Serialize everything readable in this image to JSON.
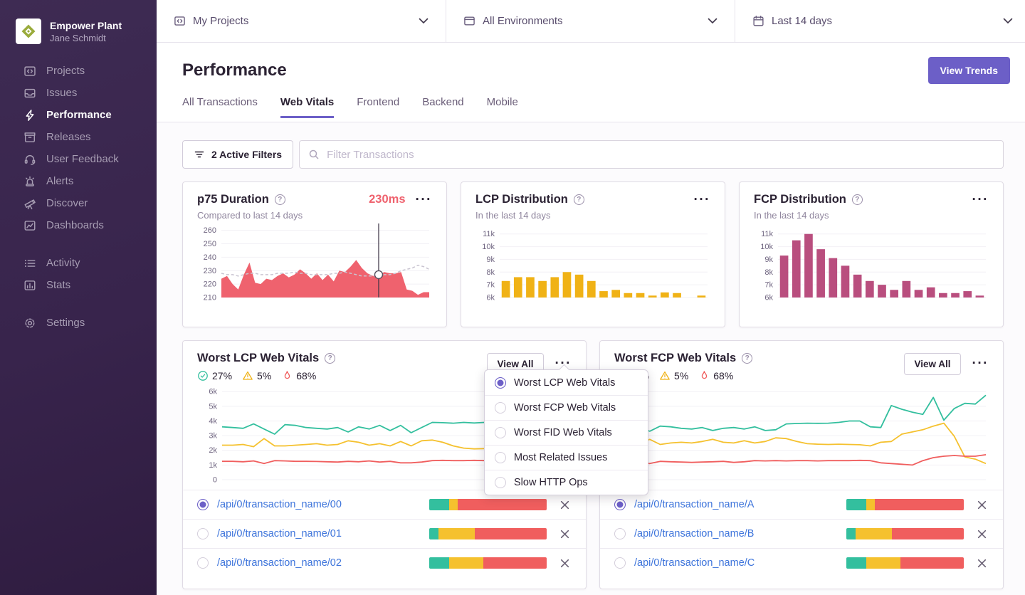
{
  "colors": {
    "accent_purple": "#6C5FC7",
    "sidebar_bg": "#38244C",
    "link_blue": "#3D74DB",
    "red": "#EF626E",
    "bar_yellow": "#F0B216",
    "bar_magenta": "#B94E7E",
    "line_green": "#33BF9E",
    "line_yellow": "#F5C12E",
    "line_red": "#F05E5E",
    "score_segments": [
      "#33BF9E",
      "#F5C12E",
      "#F05E5E"
    ]
  },
  "sidebar": {
    "org": "Empower Plant",
    "user": "Jane Schmidt",
    "items": [
      {
        "icon": "projects-icon",
        "label": "Projects"
      },
      {
        "icon": "issues-icon",
        "label": "Issues"
      },
      {
        "icon": "performance-icon",
        "label": "Performance",
        "active": true
      },
      {
        "icon": "releases-icon",
        "label": "Releases"
      },
      {
        "icon": "user-feedback-icon",
        "label": "User Feedback"
      },
      {
        "icon": "alerts-icon",
        "label": "Alerts"
      },
      {
        "icon": "discover-icon",
        "label": "Discover"
      },
      {
        "icon": "dashboards-icon",
        "label": "Dashboards"
      }
    ],
    "secondary": [
      {
        "icon": "activity-icon",
        "label": "Activity"
      },
      {
        "icon": "stats-icon",
        "label": "Stats"
      }
    ],
    "tertiary": [
      {
        "icon": "settings-icon",
        "label": "Settings"
      }
    ]
  },
  "topbar": {
    "project_selector": "My Projects",
    "env_selector": "All Environments",
    "date_selector": "Last 14 days"
  },
  "header": {
    "title": "Performance",
    "view_trends": "View Trends",
    "tabs": [
      "All Transactions",
      "Web Vitals",
      "Frontend",
      "Backend",
      "Mobile"
    ],
    "active_tab": "Web Vitals"
  },
  "filters": {
    "active_filters_label": "2 Active Filters",
    "search_placeholder": "Filter Transactions"
  },
  "mini_cards": {
    "p75": {
      "title": "p75 Duration",
      "value": "230ms",
      "subtitle": "Compared to last 14 days"
    },
    "lcp": {
      "title": "LCP Distribution",
      "subtitle": "In the last 14 days"
    },
    "fcp": {
      "title": "FCP Distribution",
      "subtitle": "In the last 14 days"
    }
  },
  "vitals_cards": [
    {
      "title": "Worst LCP Web Vitals",
      "view_all": "View All",
      "stats": [
        {
          "icon": "check-circle-icon",
          "value": "27%"
        },
        {
          "icon": "warning-triangle-icon",
          "value": "5%"
        },
        {
          "icon": "fire-icon",
          "value": "68%"
        }
      ],
      "rows": [
        {
          "label": "/api/0/transaction_name/00",
          "selected": true,
          "segments": [
            17,
            7,
            76
          ]
        },
        {
          "label": "/api/0/transaction_name/01",
          "selected": false,
          "segments": [
            8,
            31,
            61
          ]
        },
        {
          "label": "/api/0/transaction_name/02",
          "selected": false,
          "segments": [
            17,
            29,
            54
          ]
        }
      ]
    },
    {
      "title": "Worst FCP Web Vitals",
      "view_all": "View All",
      "stats": [
        {
          "icon": "check-circle-icon",
          "value": "27%"
        },
        {
          "icon": "warning-triangle-icon",
          "value": "5%"
        },
        {
          "icon": "fire-icon",
          "value": "68%"
        }
      ],
      "rows": [
        {
          "label": "/api/0/transaction_name/A",
          "selected": true,
          "segments": [
            17,
            7,
            76
          ]
        },
        {
          "label": "/api/0/transaction_name/B",
          "selected": false,
          "segments": [
            8,
            31,
            61
          ]
        },
        {
          "label": "/api/0/transaction_name/C",
          "selected": false,
          "segments": [
            17,
            29,
            54
          ]
        }
      ]
    }
  ],
  "dropdown": {
    "items": [
      {
        "label": "Worst LCP Web Vitals",
        "selected": true
      },
      {
        "label": "Worst FCP Web Vitals",
        "selected": false
      },
      {
        "label": "Worst FID Web Vitals",
        "selected": false
      },
      {
        "label": "Most Related Issues",
        "selected": false
      },
      {
        "label": "Slow HTTP Ops",
        "selected": false
      }
    ]
  },
  "chart_data": [
    {
      "id": "p75",
      "type": "area",
      "title": "p75 Duration",
      "ylabel": "ms",
      "ylim": [
        210,
        263
      ],
      "yticks": [
        210,
        220,
        230,
        240,
        250,
        260
      ],
      "ytick_labels": [
        "210",
        "220",
        "230",
        "240",
        "250",
        "260"
      ],
      "color": "#EF626E",
      "baseline_color": "#C9C4D1",
      "marker_index": 28,
      "values": [
        224,
        226,
        220,
        216,
        227,
        236,
        221,
        220,
        224,
        223,
        226,
        228,
        225,
        227,
        231,
        228,
        224,
        228,
        223,
        227,
        222,
        230,
        229,
        233,
        238,
        232,
        228,
        226,
        227,
        229,
        228,
        228,
        229,
        216,
        215,
        212,
        214,
        214
      ],
      "baseline": [
        228,
        227,
        227,
        226,
        227,
        228,
        228,
        227,
        227,
        227,
        228,
        228,
        228,
        229,
        228,
        228,
        227,
        227,
        227,
        227,
        228,
        228,
        229,
        228,
        227,
        226,
        226,
        226,
        226,
        227,
        227,
        228,
        230,
        231,
        232,
        234,
        233,
        231
      ]
    },
    {
      "id": "lcp-dist",
      "type": "bar",
      "title": "LCP Distribution",
      "ylim": [
        6000,
        11600
      ],
      "yticks": [
        6000,
        7000,
        8000,
        9000,
        10000,
        11000
      ],
      "ytick_labels": [
        "6k",
        "7k",
        "8k",
        "9k",
        "10k",
        "11k"
      ],
      "color": "#F0B216",
      "values": [
        7300,
        7600,
        7600,
        7300,
        7600,
        8000,
        7800,
        7300,
        6500,
        6600,
        6350,
        6350,
        6150,
        6400,
        6350,
        6000,
        6150
      ]
    },
    {
      "id": "fcp-dist",
      "type": "bar",
      "title": "FCP Distribution",
      "ylim": [
        6000,
        11600
      ],
      "yticks": [
        6000,
        7000,
        8000,
        9000,
        10000,
        11000
      ],
      "ytick_labels": [
        "6k",
        "7k",
        "8k",
        "9k",
        "10k",
        "11k"
      ],
      "color": "#B94E7E",
      "values": [
        9300,
        10500,
        11000,
        9800,
        9100,
        8500,
        7800,
        7300,
        7000,
        6600,
        7300,
        6600,
        6800,
        6350,
        6350,
        6500,
        6150
      ]
    },
    {
      "id": "worst-lcp",
      "type": "line",
      "title": "Worst LCP Web Vitals",
      "ylim": [
        0,
        6300
      ],
      "yticks": [
        0,
        1000,
        2000,
        3000,
        4000,
        5000,
        6000
      ],
      "ytick_labels": [
        "0",
        "1k",
        "2k",
        "3k",
        "4k",
        "5k",
        "6k"
      ],
      "series": [
        {
          "name": "good",
          "color": "#33BF9E",
          "values": [
            3600,
            3550,
            3500,
            3800,
            3450,
            3100,
            3750,
            3700,
            3550,
            3500,
            3450,
            3550,
            3250,
            3600,
            3450,
            3700,
            3350,
            3700,
            3200,
            3550,
            3900,
            3880,
            3850,
            3900,
            3860,
            3900,
            3880,
            4050,
            4050,
            3500,
            3450,
            5150,
            4850,
            4600
          ]
        },
        {
          "name": "meh",
          "color": "#F5C12E",
          "values": [
            2350,
            2350,
            2400,
            2250,
            2800,
            2300,
            2300,
            2350,
            2400,
            2450,
            2350,
            2400,
            2650,
            2550,
            2350,
            2450,
            2300,
            2600,
            2300,
            2650,
            2700,
            2550,
            2300,
            2150,
            2100,
            2120,
            2150,
            2100,
            2120,
            2000,
            2000,
            2500,
            2950,
            3450
          ]
        },
        {
          "name": "poor",
          "color": "#F05E5E",
          "values": [
            1250,
            1250,
            1220,
            1280,
            1100,
            1300,
            1280,
            1250,
            1250,
            1240,
            1220,
            1200,
            1250,
            1220,
            1280,
            1200,
            1250,
            1150,
            1150,
            1200,
            1300,
            1320,
            1300,
            1300,
            1320,
            1300,
            1300,
            1300,
            1350,
            1380,
            1250,
            1250,
            1000,
            920
          ]
        }
      ]
    },
    {
      "id": "worst-fcp",
      "type": "line",
      "title": "Worst FCP Web Vitals",
      "ylim": [
        0,
        6300
      ],
      "yticks": [
        0,
        1000,
        2000,
        3000,
        4000,
        5000,
        6000
      ],
      "ytick_labels": [
        "0",
        "1k",
        "2k",
        "3k",
        "4k",
        "5k",
        "6k"
      ],
      "series": [
        {
          "name": "good",
          "color": "#33BF9E",
          "values": [
            3600,
            3300,
            3650,
            3600,
            3500,
            3450,
            3550,
            3350,
            3500,
            3550,
            3450,
            3600,
            3350,
            3400,
            3800,
            3830,
            3850,
            3840,
            3850,
            3900,
            4000,
            4000,
            3600,
            3550,
            5050,
            4800,
            4600,
            4450,
            5600,
            4050,
            4850,
            5200,
            5150,
            5750
          ]
        },
        {
          "name": "meh",
          "color": "#F5C12E",
          "values": [
            2450,
            2750,
            2400,
            2500,
            2550,
            2500,
            2600,
            2750,
            2550,
            2500,
            2650,
            2500,
            2600,
            2850,
            2800,
            2600,
            2450,
            2420,
            2400,
            2420,
            2400,
            2380,
            2300,
            2550,
            2600,
            3100,
            3250,
            3400,
            3650,
            3850,
            2950,
            1550,
            1400,
            1100
          ]
        },
        {
          "name": "poor",
          "color": "#F05E5E",
          "values": [
            1200,
            1100,
            1250,
            1220,
            1200,
            1180,
            1200,
            1220,
            1250,
            1180,
            1220,
            1300,
            1280,
            1300,
            1280,
            1300,
            1300,
            1280,
            1300,
            1300,
            1300,
            1320,
            1300,
            1150,
            1100,
            1050,
            1000,
            1300,
            1500,
            1600,
            1650,
            1600,
            1600,
            1700
          ]
        }
      ]
    }
  ]
}
